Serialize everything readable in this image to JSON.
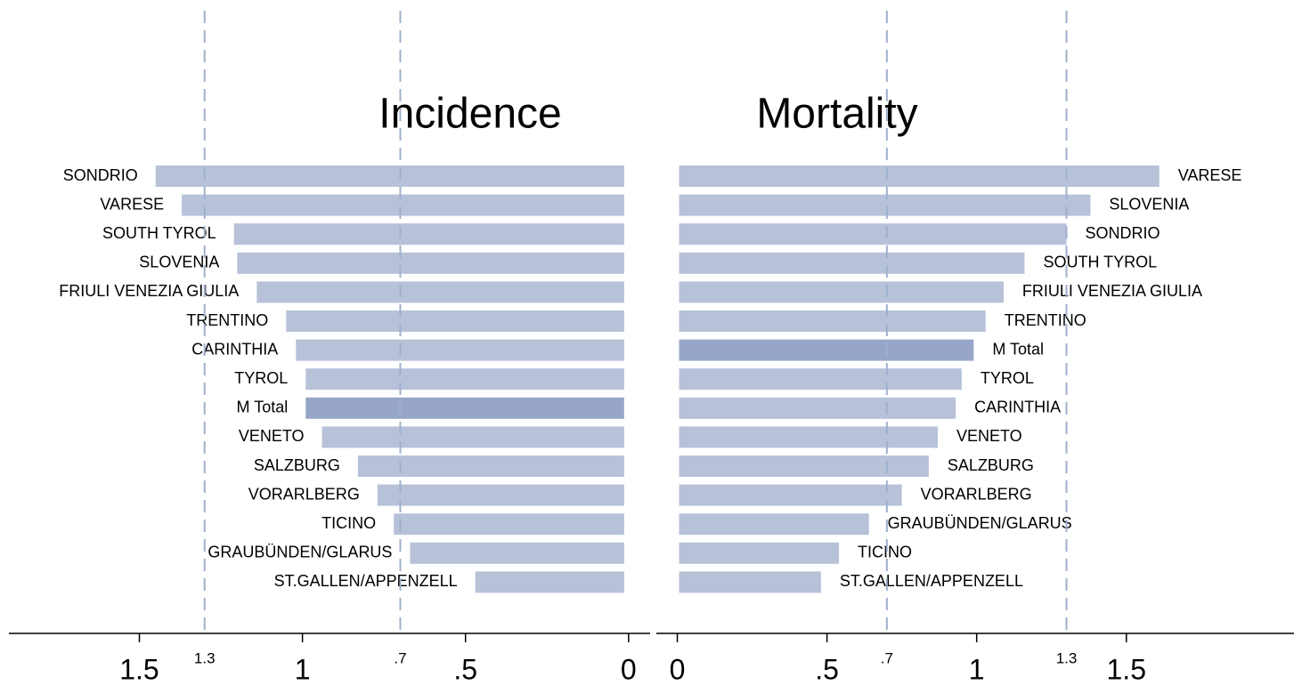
{
  "chart_data": [
    {
      "type": "bar",
      "orientation": "horizontal",
      "title": "Incidence",
      "categories": [
        "SONDRIO",
        "VARESE",
        "SOUTH TYROL",
        "SLOVENIA",
        "FRIULI VENEZIA GIULIA",
        "TRENTINO",
        "CARINTHIA",
        "TYROL",
        "M Total",
        "VENETO",
        "SALZBURG",
        "VORARLBERG",
        "TICINO",
        "GRAUBÜNDEN/GLARUS",
        "ST.GALLEN/APPENZELL"
      ],
      "values": [
        1.45,
        1.37,
        1.21,
        1.2,
        1.14,
        1.05,
        1.02,
        0.99,
        0.99,
        0.94,
        0.83,
        0.77,
        0.72,
        0.67,
        0.47
      ],
      "colors": [
        "#b7c2d9",
        "#b7c2d9",
        "#b7c2d9",
        "#b7c2d9",
        "#b7c2d9",
        "#b7c2d9",
        "#b7c2d9",
        "#b7c2d9",
        "#97a6c8",
        "#b7c2d9",
        "#b7c2d9",
        "#b7c2d9",
        "#b7c2d9",
        "#b7c2d9",
        "#b7c2d9"
      ],
      "xlim": [
        1.9,
        -0.066
      ],
      "xticks": [
        1.5,
        1,
        {
          "value": 0.5,
          "label": ".5"
        },
        0
      ],
      "reference_lines": [
        1.3,
        {
          "value": 0.7,
          "label": ".7"
        }
      ],
      "reference_color": "#9fb0cc"
    },
    {
      "type": "bar",
      "orientation": "horizontal",
      "title": "Mortality",
      "categories": [
        "VARESE",
        "SLOVENIA",
        "SONDRIO",
        "SOUTH TYROL",
        "FRIULI VENEZIA GIULIA",
        "TRENTINO",
        "M Total",
        "TYROL",
        "CARINTHIA",
        "VENETO",
        "SALZBURG",
        "VORARLBERG",
        "GRAUBÜNDEN/GLARUS",
        "TICINO",
        "ST.GALLEN/APPENZELL"
      ],
      "values": [
        1.61,
        1.38,
        1.3,
        1.16,
        1.09,
        1.03,
        0.99,
        0.95,
        0.93,
        0.87,
        0.84,
        0.75,
        0.64,
        0.54,
        0.48
      ],
      "colors": [
        "#b7c2d9",
        "#b7c2d9",
        "#b7c2d9",
        "#b7c2d9",
        "#b7c2d9",
        "#b7c2d9",
        "#97a6c8",
        "#b7c2d9",
        "#b7c2d9",
        "#b7c2d9",
        "#b7c2d9",
        "#b7c2d9",
        "#b7c2d9",
        "#b7c2d9",
        "#b7c2d9"
      ],
      "xlim": [
        -0.07,
        2.06
      ],
      "xticks": [
        0,
        {
          "value": 0.5,
          "label": ".5"
        },
        1,
        1.5
      ],
      "reference_lines": [
        {
          "value": 0.7,
          "label": ".7"
        },
        1.3
      ],
      "reference_color": "#9fb0cc"
    }
  ]
}
